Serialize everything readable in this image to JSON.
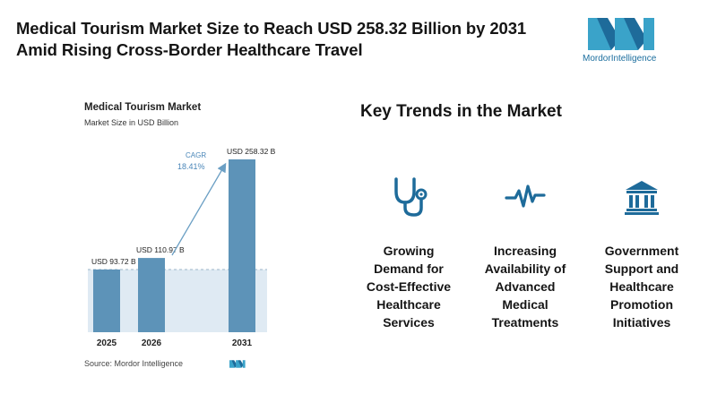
{
  "headline": {
    "line1": "Medical Tourism Market Size to Reach USD 258.32 Billion by 2031",
    "line2": "Amid Rising Cross-Border Healthcare Travel"
  },
  "logo": {
    "brand1": "Mordor",
    "brand2": "Intelligence",
    "accent": "#1b6e9e"
  },
  "chart": {
    "title": "Medical Tourism Market",
    "subtitle": "Market Size in USD Billion",
    "cagr_label": "CAGR",
    "cagr_value": "18.41%",
    "source": "Source: Mordor Intelligence"
  },
  "chart_data": {
    "type": "bar",
    "title": "Medical Tourism Market",
    "ylabel": "Market Size in USD Billion",
    "categories": [
      "2025",
      "2026",
      "2031"
    ],
    "values": [
      93.72,
      110.97,
      258.32
    ],
    "data_labels": [
      "USD 93.72 B",
      "USD 110.97 B",
      "USD 258.32 B"
    ],
    "ylim": [
      0,
      258.32
    ],
    "annotation": "CAGR 18.41%",
    "grid": false,
    "bar_color": "#5d93b8"
  },
  "trends": {
    "title": "Key Trends in the Market",
    "items": [
      {
        "icon": "stethoscope-icon",
        "label": [
          "Growing",
          "Demand for",
          "Cost-Effective",
          "Healthcare",
          "Services"
        ]
      },
      {
        "icon": "heartbeat-icon",
        "label": [
          "Increasing",
          "Availability of",
          "Advanced",
          "Medical",
          "Treatments"
        ]
      },
      {
        "icon": "government-building-icon",
        "label": [
          "Government",
          "Support and",
          "Healthcare",
          "Promotion",
          "Initiatives"
        ]
      }
    ]
  },
  "colors": {
    "icon": "#1e6b9a",
    "bar": "#5d93b8",
    "shade": "#dfeaf3",
    "arrow": "#6b9fc4",
    "cagr": "#4a86b8"
  }
}
